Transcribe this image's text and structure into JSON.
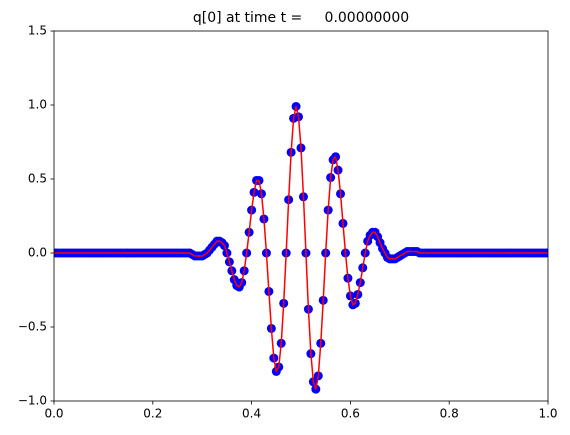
{
  "chart_data": {
    "type": "scatter",
    "title": "q[0] at time t =     0.00000000",
    "x": [
      0,
      0.005,
      0.01,
      0.015,
      0.02,
      0.025,
      0.03,
      0.035,
      0.04,
      0.045,
      0.05,
      0.055,
      0.06,
      0.065,
      0.07,
      0.075,
      0.08,
      0.085,
      0.09,
      0.095,
      0.1,
      0.105,
      0.11,
      0.115,
      0.12,
      0.125,
      0.13,
      0.135,
      0.14,
      0.145,
      0.15,
      0.155,
      0.16,
      0.165,
      0.17,
      0.175,
      0.18,
      0.185,
      0.19,
      0.195,
      0.2,
      0.205,
      0.21,
      0.215,
      0.22,
      0.225,
      0.23,
      0.235,
      0.24,
      0.245,
      0.25,
      0.255,
      0.26,
      0.265,
      0.27,
      0.275,
      0.28,
      0.285,
      0.29,
      0.295,
      0.3,
      0.305,
      0.31,
      0.315,
      0.32,
      0.325,
      0.33,
      0.335,
      0.34,
      0.345,
      0.35,
      0.355,
      0.36,
      0.365,
      0.37,
      0.375,
      0.38,
      0.385,
      0.39,
      0.395,
      0.4,
      0.405,
      0.41,
      0.415,
      0.42,
      0.425,
      0.43,
      0.435,
      0.44,
      0.445,
      0.45,
      0.455,
      0.46,
      0.465,
      0.47,
      0.475,
      0.48,
      0.485,
      0.49,
      0.495,
      0.5,
      0.505,
      0.51,
      0.515,
      0.52,
      0.525,
      0.53,
      0.535,
      0.54,
      0.545,
      0.55,
      0.555,
      0.56,
      0.565,
      0.57,
      0.575,
      0.58,
      0.585,
      0.59,
      0.595,
      0.6,
      0.605,
      0.61,
      0.615,
      0.62,
      0.625,
      0.63,
      0.635,
      0.64,
      0.645,
      0.65,
      0.655,
      0.66,
      0.665,
      0.67,
      0.675,
      0.68,
      0.685,
      0.69,
      0.695,
      0.7,
      0.705,
      0.71,
      0.715,
      0.72,
      0.725,
      0.73,
      0.735,
      0.74,
      0.745,
      0.75,
      0.755,
      0.76,
      0.765,
      0.77,
      0.775,
      0.78,
      0.785,
      0.79,
      0.795,
      0.8,
      0.805,
      0.81,
      0.815,
      0.82,
      0.825,
      0.83,
      0.835,
      0.84,
      0.845,
      0.85,
      0.855,
      0.86,
      0.865,
      0.87,
      0.875,
      0.88,
      0.885,
      0.89,
      0.895,
      0.9,
      0.905,
      0.91,
      0.915,
      0.92,
      0.925,
      0.93,
      0.935,
      0.94,
      0.945,
      0.95,
      0.955,
      0.96,
      0.965,
      0.97,
      0.975,
      0.98,
      0.985,
      0.99,
      0.995,
      1
    ],
    "series": [
      {
        "color": "#0000ff",
        "marker": "o",
        "values": [
          0,
          0,
          0,
          0,
          0,
          0,
          0,
          0,
          0,
          0,
          0,
          0,
          0,
          0,
          0,
          0,
          0,
          0,
          0,
          0,
          0,
          0,
          0,
          0,
          0,
          0,
          0,
          0,
          0,
          0,
          0,
          0,
          0,
          0,
          0,
          0,
          0,
          0,
          0,
          0,
          0,
          0,
          0,
          0,
          0,
          0,
          0,
          0,
          0,
          0,
          0,
          0,
          0,
          0,
          0,
          0,
          -0.01,
          -0.02,
          -0.02,
          -0.02,
          -0.02,
          -0.01,
          0,
          0.02,
          0.04,
          0.06,
          0.08,
          0.08,
          0.07,
          0.05,
          0,
          -0.06,
          -0.12,
          -0.18,
          -0.22,
          -0.23,
          -0.2,
          -0.12,
          0,
          0.14,
          0.29,
          0.41,
          0.49,
          0.49,
          0.4,
          0.23,
          0,
          -0.26,
          -0.51,
          -0.71,
          -0.8,
          -0.77,
          -0.61,
          -0.34,
          0,
          0.36,
          0.68,
          0.91,
          0.99,
          0.92,
          0.71,
          0.38,
          0,
          -0.38,
          -0.68,
          -0.87,
          -0.92,
          -0.83,
          -0.61,
          -0.32,
          0,
          0.29,
          0.51,
          0.63,
          0.65,
          0.56,
          0.4,
          0.2,
          0,
          -0.17,
          -0.29,
          -0.35,
          -0.34,
          -0.28,
          -0.2,
          -0.1,
          0,
          0.08,
          0.12,
          0.14,
          0.14,
          0.11,
          0.07,
          0.03,
          0,
          -0.03,
          -0.04,
          -0.04,
          -0.04,
          -0.03,
          -0.02,
          -0.01,
          0,
          0.01,
          0.01,
          0.01,
          0.01,
          0.01,
          0,
          0,
          0,
          0,
          0,
          0,
          0,
          0,
          0,
          0,
          0,
          0,
          0,
          0,
          0,
          0,
          0,
          0,
          0,
          0,
          0,
          0,
          0,
          0,
          0,
          0,
          0,
          0,
          0,
          0,
          0,
          0,
          0,
          0,
          0,
          0,
          0,
          0,
          0,
          0,
          0,
          0,
          0,
          0,
          0,
          0,
          0,
          0,
          0,
          0,
          0,
          0,
          0
        ]
      },
      {
        "color": "#ff0000",
        "linestyle": "-",
        "values": [
          0,
          0,
          0,
          0,
          0,
          0,
          0,
          0,
          0,
          0,
          0,
          0,
          0,
          0,
          0,
          0,
          0,
          0,
          0,
          0,
          0,
          0,
          0,
          0,
          0,
          0,
          0,
          0,
          0,
          0,
          0,
          0,
          0,
          0,
          0,
          0,
          0,
          0,
          0,
          0,
          0,
          0,
          0,
          0,
          0,
          0,
          0,
          0,
          0,
          0,
          0,
          0,
          0,
          0,
          0,
          0,
          -0.01,
          -0.02,
          -0.02,
          -0.02,
          -0.02,
          -0.01,
          0,
          0.02,
          0.04,
          0.06,
          0.08,
          0.08,
          0.07,
          0.05,
          0,
          -0.06,
          -0.12,
          -0.18,
          -0.22,
          -0.23,
          -0.2,
          -0.12,
          0,
          0.14,
          0.29,
          0.41,
          0.49,
          0.49,
          0.4,
          0.23,
          0,
          -0.26,
          -0.51,
          -0.71,
          -0.8,
          -0.77,
          -0.61,
          -0.34,
          0,
          0.36,
          0.68,
          0.91,
          0.99,
          0.92,
          0.71,
          0.38,
          0,
          -0.38,
          -0.68,
          -0.87,
          -0.92,
          -0.83,
          -0.61,
          -0.32,
          0,
          0.29,
          0.51,
          0.63,
          0.65,
          0.56,
          0.4,
          0.2,
          0,
          -0.17,
          -0.29,
          -0.35,
          -0.34,
          -0.28,
          -0.2,
          -0.1,
          0,
          0.08,
          0.12,
          0.14,
          0.14,
          0.11,
          0.07,
          0.03,
          0,
          -0.03,
          -0.04,
          -0.04,
          -0.04,
          -0.03,
          -0.02,
          -0.01,
          0,
          0.01,
          0.01,
          0.01,
          0.01,
          0.01,
          0,
          0,
          0,
          0,
          0,
          0,
          0,
          0,
          0,
          0,
          0,
          0,
          0,
          0,
          0,
          0,
          0,
          0,
          0,
          0,
          0,
          0,
          0,
          0,
          0,
          0,
          0,
          0,
          0,
          0,
          0,
          0,
          0,
          0,
          0,
          0,
          0,
          0,
          0,
          0,
          0,
          0,
          0,
          0,
          0,
          0,
          0,
          0,
          0,
          0,
          0,
          0,
          0
        ]
      }
    ],
    "xlim": [
      0,
      1
    ],
    "xticks": [
      {
        "value": 0,
        "label": "0.0"
      },
      0.2,
      0.4,
      0.6,
      0.8,
      {
        "value": 1,
        "label": "1.0"
      }
    ],
    "ylim": [
      -1,
      1.5
    ],
    "yticks": [
      {
        "value": -1,
        "label": "−1.0"
      },
      {
        "value": -0.5,
        "label": "−0.5"
      },
      {
        "value": 0,
        "label": "0.0"
      },
      0.5,
      {
        "value": 1,
        "label": "1.0"
      },
      1.5
    ],
    "grid": false
  }
}
